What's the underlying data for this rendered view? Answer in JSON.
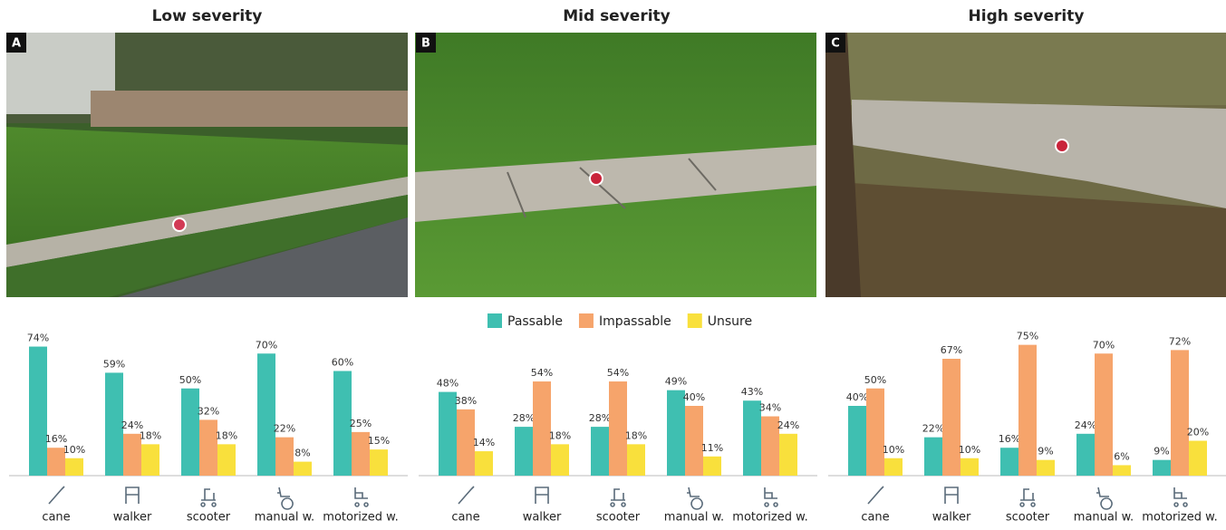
{
  "chart_data": [
    {
      "type": "bar",
      "title": "Low severity",
      "label": "A",
      "categories": [
        "cane",
        "walker",
        "scooter",
        "manual w.",
        "motorized w."
      ],
      "ylim": [
        0,
        80
      ],
      "series": [
        {
          "name": "Passable",
          "color": "#3fbfb1",
          "values": [
            74,
            59,
            50,
            70,
            60
          ],
          "value_labels": [
            "74%",
            "59%",
            "50%",
            "70%",
            "60%"
          ]
        },
        {
          "name": "Impassable",
          "color": "#f6a46b",
          "values": [
            16,
            24,
            32,
            22,
            25
          ],
          "value_labels": [
            "16%",
            "24%",
            "32%",
            "22%",
            "25%"
          ]
        },
        {
          "name": "Unsure",
          "color": "#f9e03c",
          "values": [
            10,
            18,
            18,
            8,
            15
          ],
          "value_labels": [
            "10%",
            "18%",
            "18%",
            "8%",
            "15%"
          ]
        }
      ]
    },
    {
      "type": "bar",
      "title": "Mid severity",
      "label": "B",
      "categories": [
        "cane",
        "walker",
        "scooter",
        "manual w.",
        "motorized w."
      ],
      "ylim": [
        0,
        80
      ],
      "series": [
        {
          "name": "Passable",
          "color": "#3fbfb1",
          "values": [
            48,
            28,
            28,
            49,
            43
          ],
          "value_labels": [
            "48%",
            "28%",
            "28%",
            "49%",
            "43%"
          ]
        },
        {
          "name": "Impassable",
          "color": "#f6a46b",
          "values": [
            38,
            54,
            54,
            40,
            34
          ],
          "value_labels": [
            "38%",
            "54%",
            "54%",
            "40%",
            "34%"
          ]
        },
        {
          "name": "Unsure",
          "color": "#f9e03c",
          "values": [
            14,
            18,
            18,
            11,
            24
          ],
          "value_labels": [
            "14%",
            "18%",
            "18%",
            "11%",
            "24%"
          ]
        }
      ]
    },
    {
      "type": "bar",
      "title": "High severity",
      "label": "C",
      "categories": [
        "cane",
        "walker",
        "scooter",
        "manual w.",
        "motorized w."
      ],
      "ylim": [
        0,
        80
      ],
      "series": [
        {
          "name": "Passable",
          "color": "#3fbfb1",
          "values": [
            40,
            22,
            16,
            24,
            9
          ],
          "value_labels": [
            "40%",
            "22%",
            "16%",
            "24%",
            "9%"
          ]
        },
        {
          "name": "Impassable",
          "color": "#f6a46b",
          "values": [
            50,
            67,
            75,
            70,
            72
          ],
          "value_labels": [
            "50%",
            "67%",
            "75%",
            "70%",
            "72%"
          ]
        },
        {
          "name": "Unsure",
          "color": "#f9e03c",
          "values": [
            10,
            10,
            9,
            6,
            20
          ],
          "value_labels": [
            "10%",
            "10%",
            "9%",
            "6%",
            "20%"
          ]
        }
      ]
    }
  ]
}
